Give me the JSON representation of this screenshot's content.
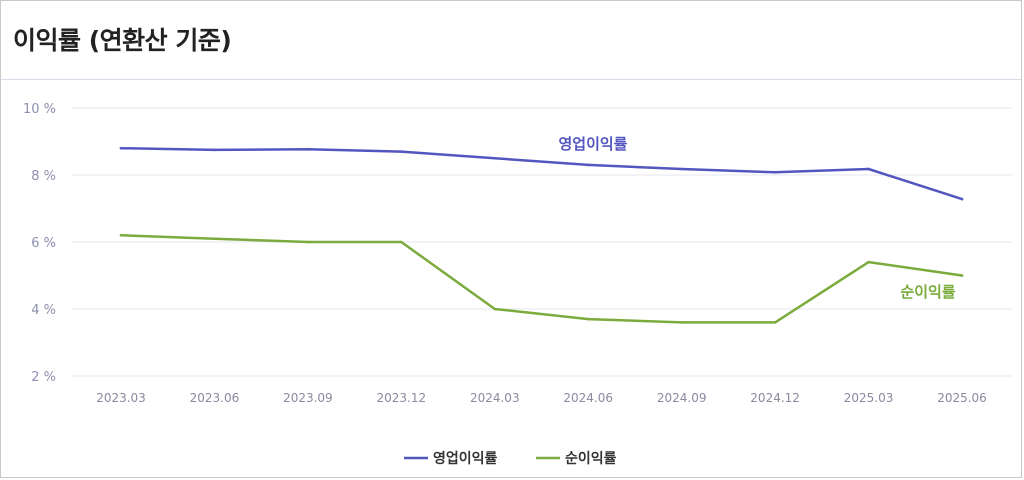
{
  "title": "이익률 (연환산 기준)",
  "chart_data": {
    "type": "line",
    "categories": [
      "2023.03",
      "2023.06",
      "2023.09",
      "2023.12",
      "2024.03",
      "2024.06",
      "2024.09",
      "2024.12",
      "2025.03",
      "2025.06"
    ],
    "yticks": [
      "2 %",
      "4 %",
      "6 %",
      "8 %",
      "10 %"
    ],
    "ylim": [
      2,
      10
    ],
    "grid": true,
    "legend_position": "bottom",
    "series": [
      {
        "name": "영업이익률",
        "color": "#5456c0",
        "values": [
          8.8,
          8.75,
          8.77,
          8.7,
          8.5,
          8.3,
          8.18,
          8.08,
          8.18,
          7.28
        ]
      },
      {
        "name": "순이익률",
        "color": "#7aab3c",
        "values": [
          6.2,
          6.1,
          6.0,
          6.0,
          4.0,
          3.7,
          3.6,
          3.6,
          5.4,
          5.0
        ]
      }
    ]
  }
}
